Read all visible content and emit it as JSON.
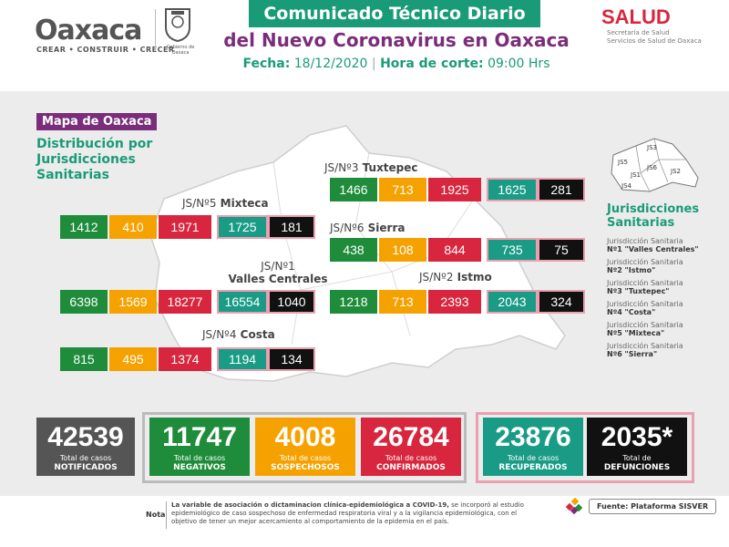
{
  "header": {
    "logo_main": "Oaxaca",
    "logo_tagline": "CREAR • CONSTRUIR • CRECER",
    "gov_text": "Gobierno de Oaxaca",
    "title_line1": "Comunicado Técnico Diario",
    "title_line2": "del Nuevo Coronavirus en Oaxaca",
    "fecha_label": "Fecha:",
    "fecha": "18/12/2020",
    "hora_label": "Hora de corte:",
    "hora": "09:00 Hrs",
    "salud": "SALUD",
    "salud_sub1": "Secretaría de Salud",
    "salud_sub2": "Servicios de Salud de Oaxaca"
  },
  "map": {
    "tag": "Mapa de Oaxaca",
    "subtitle_l1": "Distribución por",
    "subtitle_l2": "Jurisdicciones",
    "subtitle_l3": "Sanitarias"
  },
  "jurisdictions": [
    {
      "id": "tuxtepec",
      "label": "JS/Nº3",
      "name": "Tuxtepec",
      "values": [
        "1466",
        "713",
        "1925",
        "1625",
        "281"
      ]
    },
    {
      "id": "mixteca",
      "label": "JS/Nº5",
      "name": "Mixteca",
      "values": [
        "1412",
        "410",
        "1971",
        "1725",
        "181"
      ]
    },
    {
      "id": "sierra",
      "label": "JS/Nº6",
      "name": "Sierra",
      "values": [
        "438",
        "108",
        "844",
        "735",
        "75"
      ]
    },
    {
      "id": "valles",
      "label": "JS/Nº1",
      "name": "Valles Centrales",
      "values": [
        "6398",
        "1569",
        "18277",
        "16554",
        "1040"
      ]
    },
    {
      "id": "istmo",
      "label": "JS/Nº2",
      "name": "Istmo",
      "values": [
        "1218",
        "713",
        "2393",
        "2043",
        "324"
      ]
    },
    {
      "id": "costa",
      "label": "JS/Nº4",
      "name": "Costa",
      "values": [
        "815",
        "495",
        "1374",
        "1194",
        "134"
      ]
    }
  ],
  "legend": {
    "mini_labels": [
      "JS3",
      "JS5",
      "JS6",
      "JS1",
      "JS2",
      "JS4"
    ],
    "title_l1": "Jurisdicciones",
    "title_l2": "Sanitarias",
    "items": [
      {
        "l1": "Jurisdicción Sanitaria",
        "l2": "Nº1 \"Valles Centrales\""
      },
      {
        "l1": "Jurisdicción Sanitaria",
        "l2": "Nº2 \"Istmo\""
      },
      {
        "l1": "Jurisdicción Sanitaria",
        "l2": "Nº3 \"Tuxtepec\""
      },
      {
        "l1": "Jurisdicción Sanitaria",
        "l2": "Nº4 \"Costa\""
      },
      {
        "l1": "Jurisdicción Sanitaria",
        "l2": "Nº5 \"Mixteca\""
      },
      {
        "l1": "Jurisdicción Sanitaria",
        "l2": "Nº6 \"Sierra\""
      }
    ]
  },
  "totals": [
    {
      "id": "notificados",
      "value": "42539",
      "l1": "Total de casos",
      "l2": "NOTIFICADOS",
      "color": "#555555"
    },
    {
      "id": "negativos",
      "value": "11747",
      "l1": "Total de casos",
      "l2": "NEGATIVOS",
      "color": "#1e8c3a"
    },
    {
      "id": "sospechosos",
      "value": "4008",
      "l1": "Total de casos",
      "l2": "SOSPECHOSOS",
      "color": "#f5a200"
    },
    {
      "id": "confirmados",
      "value": "26784",
      "l1": "Total de casos",
      "l2": "CONFIRMADOS",
      "color": "#d7263d"
    },
    {
      "id": "recuperados",
      "value": "23876",
      "l1": "Total de casos",
      "l2": "RECUPERADOS",
      "color": "#1a9b86"
    },
    {
      "id": "defunciones",
      "value": "2035*",
      "l1": "Total de",
      "l2": "DEFUNCIONES",
      "color": "#111111"
    }
  ],
  "footer": {
    "nota_label": "Nota",
    "nota_bold": "La variable de asociación o dictaminacion clínica-epidemiológica a COVID-19,",
    "nota_rest": " se incorporó al estudio epidemiológico de caso sospechoso de enfermedad respiratoria viral y a la vigilancia epidemiológica, con el objetivo de tener un mejor acercamiento al comportamiento de la epidemia en el país.",
    "fuente": "Fuente: Plataforma SISVER"
  },
  "colors": {
    "green": "#1e8c3a",
    "orange": "#f5a200",
    "red": "#d7263d",
    "teal": "#1a9b86",
    "black": "#111111",
    "purple": "#7a2d7a"
  }
}
